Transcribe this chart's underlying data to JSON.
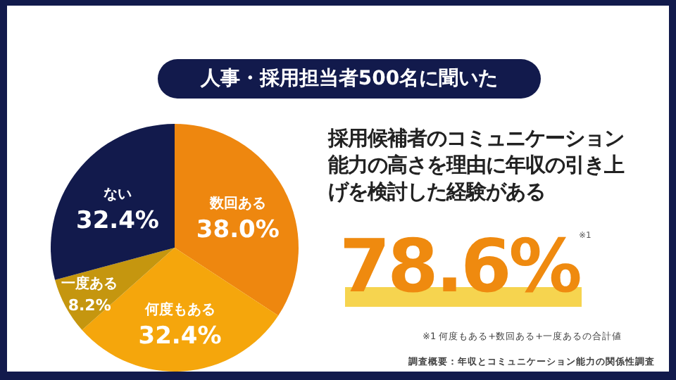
{
  "chart_data": {
    "type": "pie",
    "title": "人事・採用担当者500名に聞いた",
    "subtitle": "採用候補者のコミュニケーション能力の高さを理由に年収の引き上げを検討した経験がある",
    "categories": [
      "数回ある",
      "何度もある",
      "一度ある",
      "ない"
    ],
    "values": [
      38.0,
      32.4,
      8.2,
      32.4
    ],
    "value_labels": [
      "38.0%",
      "32.4%",
      "8.2%",
      "32.4%"
    ],
    "colors": [
      "#ee870f",
      "#f5a60c",
      "#c5960f",
      "#121a4c"
    ],
    "annotations": [
      "78.6%",
      "※1",
      "※1 何度もある+数回ある+一度あるの合計値",
      "調査概要：年収とコミュニケーション能力の関係性調査"
    ]
  }
}
